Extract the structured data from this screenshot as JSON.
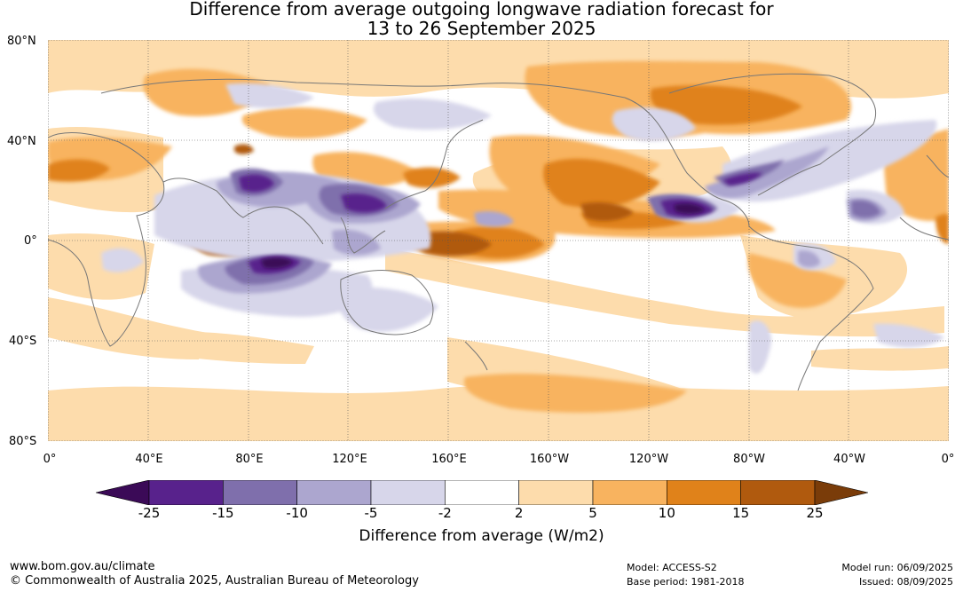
{
  "title_line1": "Difference from average outgoing longwave radiation forecast for",
  "title_line2": "13 to 26 September 2025",
  "lat_labels": [
    "80°N",
    "40°N",
    "0°",
    "40°S",
    "80°S"
  ],
  "lon_labels": [
    "0°",
    "40°E",
    "80°E",
    "120°E",
    "160°E",
    "160°W",
    "120°W",
    "80°W",
    "40°W",
    "0°"
  ],
  "colorbar": {
    "ticks": [
      "-25",
      "-15",
      "-10",
      "-5",
      "-2",
      "2",
      "5",
      "10",
      "15",
      "25"
    ],
    "colors": [
      "#3b0a57",
      "#58228c",
      "#7f6fac",
      "#aca6cf",
      "#d7d6ea",
      "#ffffff",
      "#fddcac",
      "#f8b35f",
      "#e0821a",
      "#b05a0e",
      "#7a3c09"
    ],
    "label": "Difference from average (W/m2)"
  },
  "footer": {
    "url": "www.bom.gov.au/climate",
    "copyright": "© Commonwealth of Australia 2025, Australian Bureau of Meteorology",
    "model": "Model: ACCESS-S2",
    "base_period": "Base period: 1981-2018",
    "model_run": "Model run: 06/09/2025",
    "issued": "Issued: 08/09/2025"
  }
}
